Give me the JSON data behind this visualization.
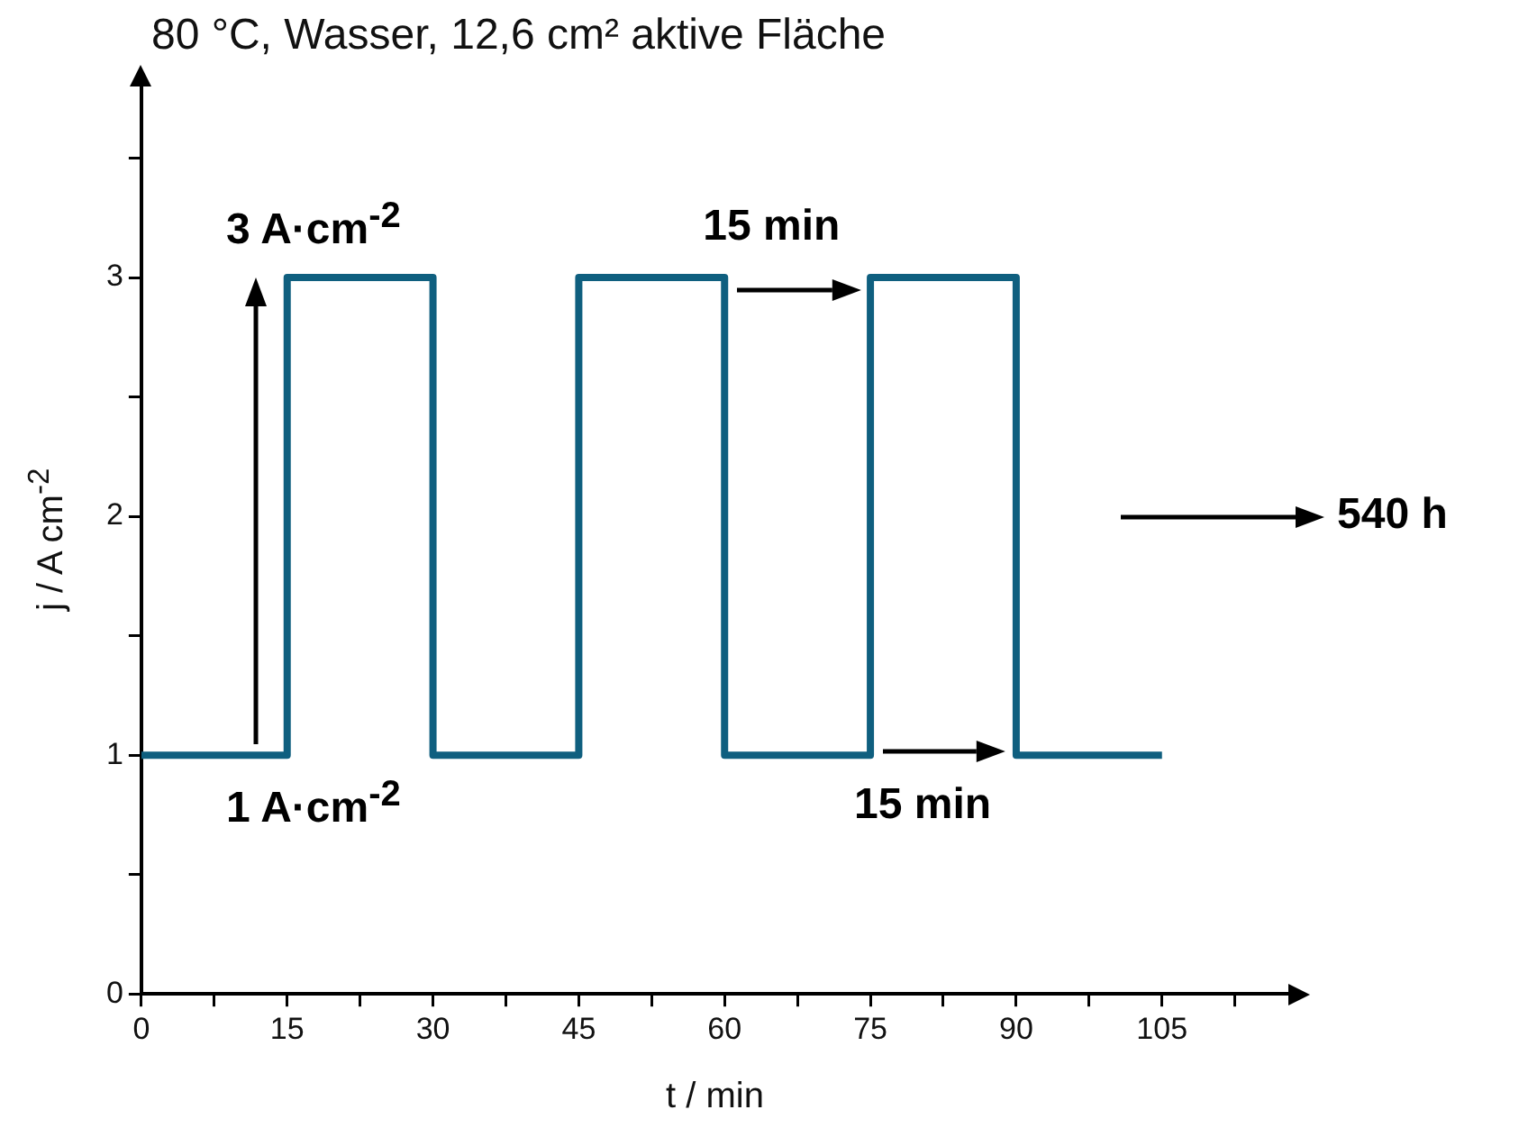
{
  "chart_data": {
    "type": "line",
    "title": "80 °C, Wasser, 12,6 cm² aktive Fläche",
    "xlabel": "t / min",
    "ylabel": "j / A cm$^{-2}$",
    "x": [
      0,
      15,
      15,
      30,
      30,
      45,
      45,
      60,
      60,
      75,
      75,
      90,
      90,
      105
    ],
    "series": [
      {
        "color": "#0f5f7f",
        "values": [
          1,
          1,
          3,
          3,
          1,
          1,
          3,
          3,
          1,
          1,
          3,
          3,
          1,
          1
        ]
      }
    ],
    "xlim": [
      0,
      118
    ],
    "ylim": [
      0,
      3.8
    ],
    "xticks": [
      0,
      {
        "value": 7.5,
        "label": null
      },
      15,
      {
        "value": 22.5,
        "label": null
      },
      30,
      {
        "value": 37.5,
        "label": null
      },
      45,
      {
        "value": 52.5,
        "label": null
      },
      60,
      {
        "value": 67.5,
        "label": null
      },
      75,
      {
        "value": 82.5,
        "label": null
      },
      90,
      {
        "value": 97.5,
        "label": null
      },
      105,
      {
        "value": 112.5,
        "label": null
      }
    ],
    "yticks": [
      0,
      {
        "value": 0.5,
        "label": null
      },
      1,
      {
        "value": 1.5,
        "label": null
      },
      2,
      {
        "value": 2.5,
        "label": null
      },
      3,
      {
        "value": 3.5,
        "label": null
      }
    ],
    "grid": false,
    "legend": false,
    "marker": "none",
    "line_style": "solid",
    "annotations": [
      "3 A·cm$^{-2}$",
      "1 A·cm$^{-2}$",
      "15 min",
      "15 min",
      "540 h"
    ]
  }
}
